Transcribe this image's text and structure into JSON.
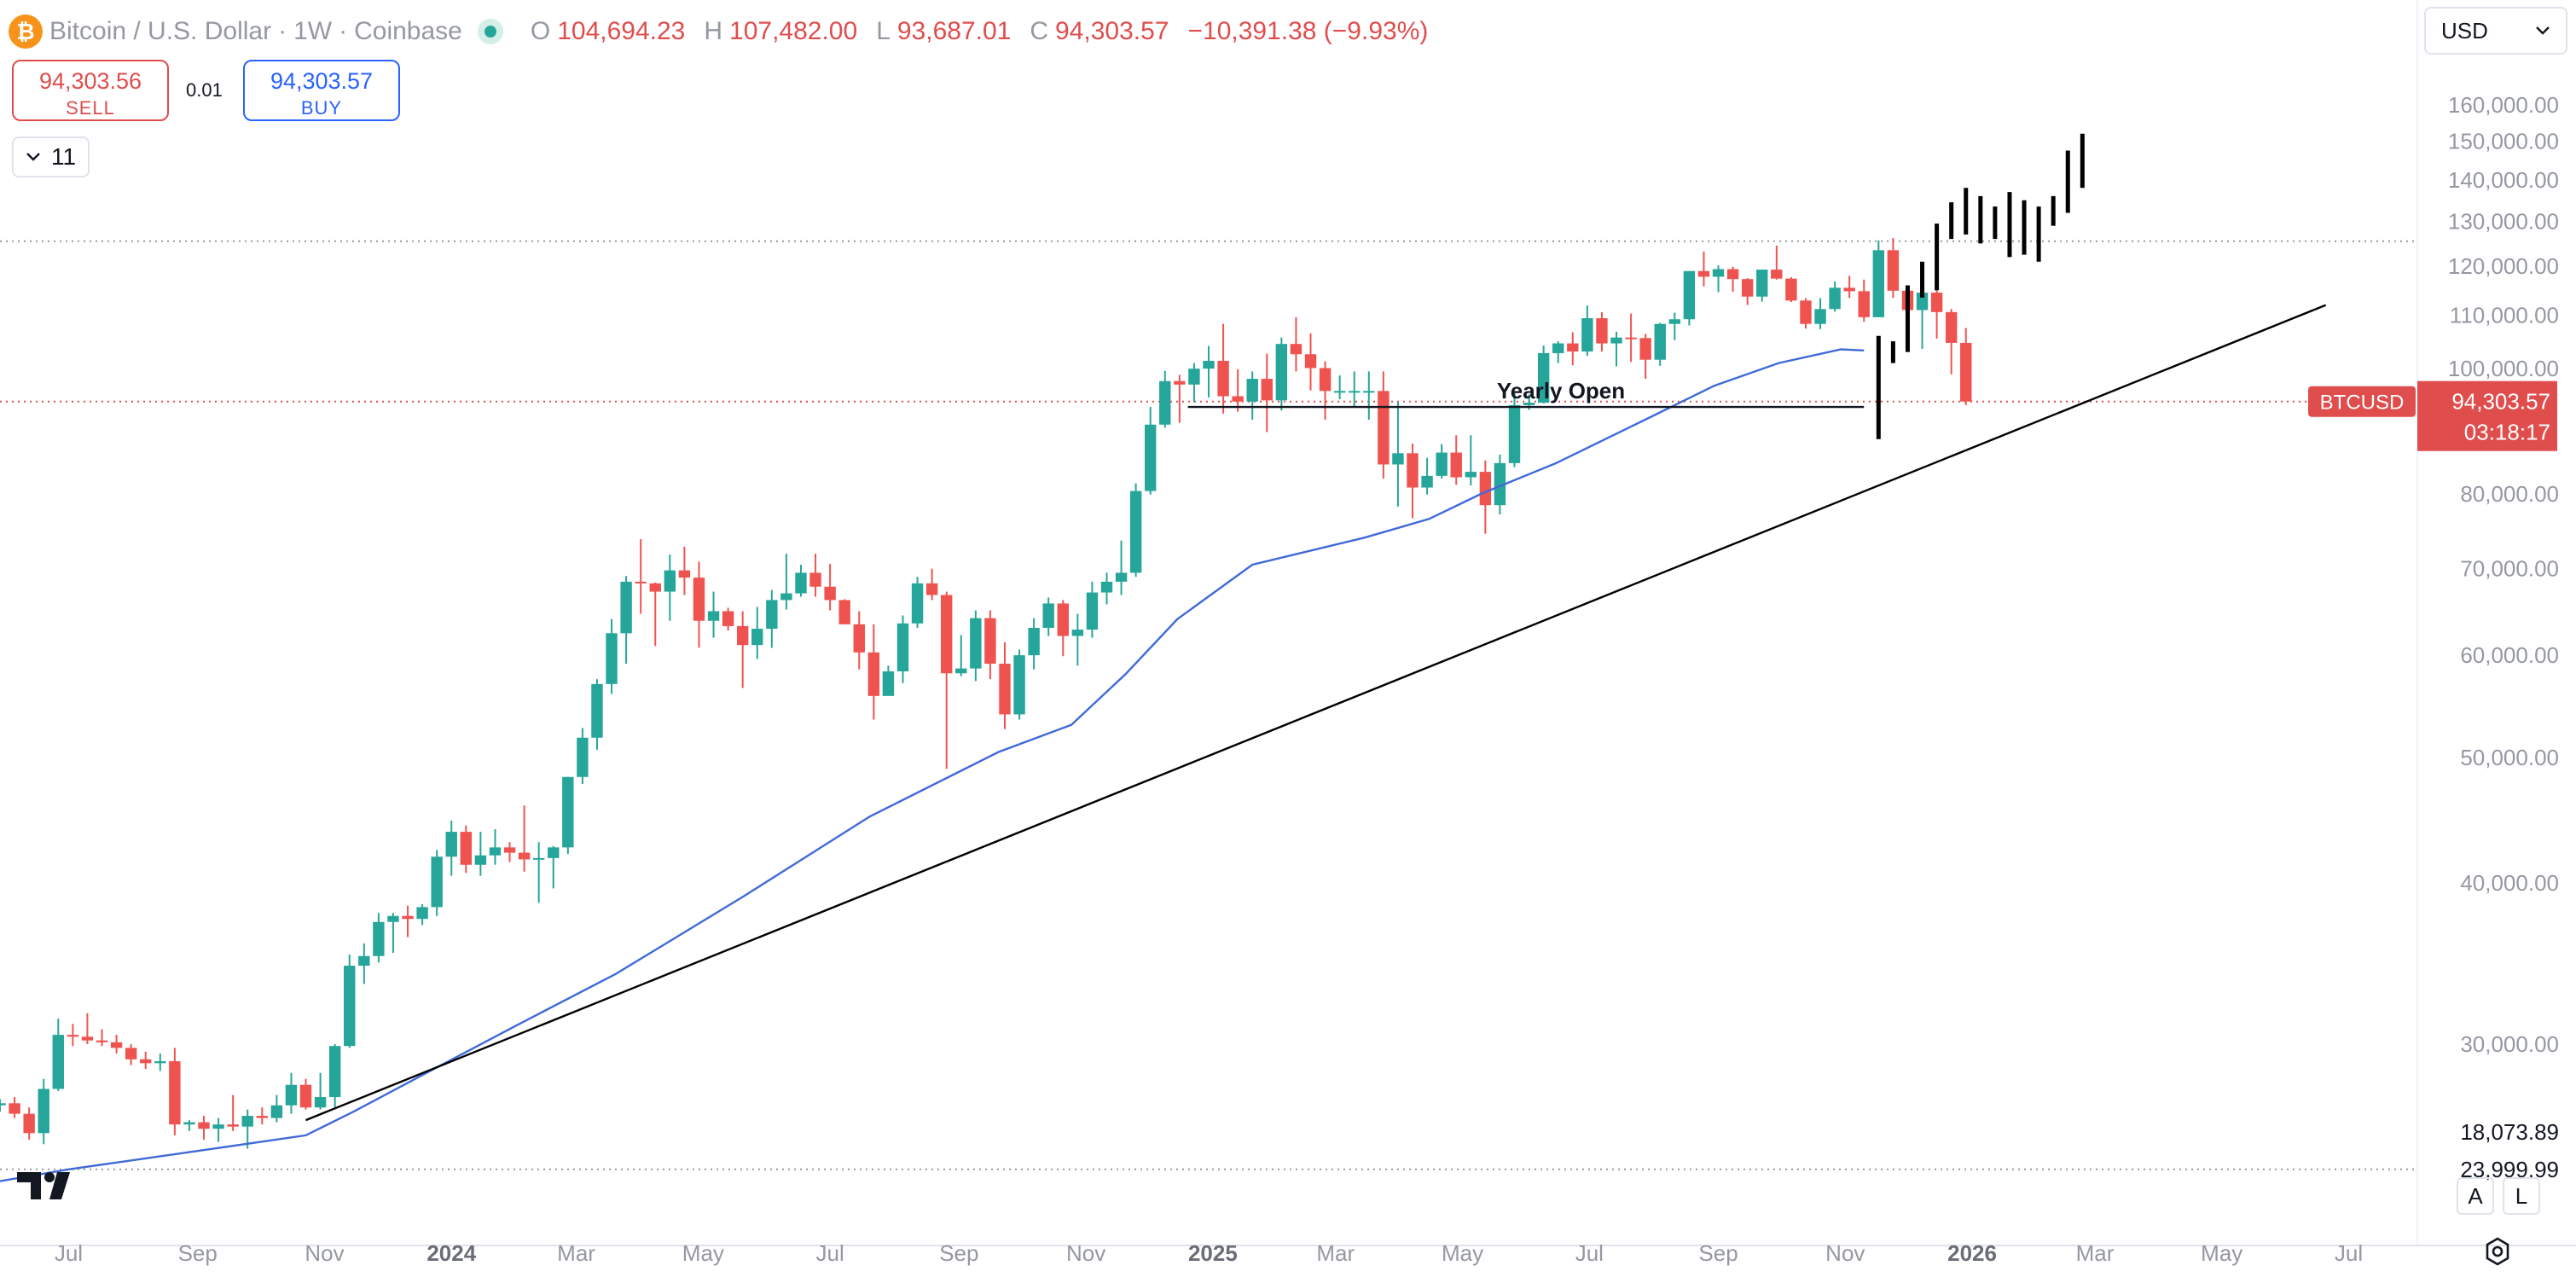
{
  "header": {
    "symbol": "Bitcoin / U.S. Dollar",
    "interval": "1W",
    "exchange": "Coinbase",
    "separator": "·",
    "coin_glyph": "₿",
    "open_label": "O",
    "open": "104,694.23",
    "high_label": "H",
    "high": "107,482.00",
    "low_label": "L",
    "low": "93,687.01",
    "close_label": "C",
    "close": "94,303.57",
    "change": "−10,391.38 (−9.93%)"
  },
  "trade": {
    "sell_price": "94,303.56",
    "sell_label": "SELL",
    "spread": "0.01",
    "buy_price": "94,303.57",
    "buy_label": "BUY"
  },
  "indicators_toggle": {
    "count": "11",
    "icon": "chevron-down-icon"
  },
  "currency_select": {
    "value": "USD",
    "icon": "chevron-down-icon"
  },
  "axis_buttons": {
    "auto": "A",
    "log": "L"
  },
  "colors": {
    "up": "#26a69a",
    "down": "#ef5350",
    "ma": "#3f6ad8",
    "projection": "#000000",
    "trendline": "#000000",
    "price_tag": "#e04d4d"
  },
  "chart_data": {
    "type": "candlestick",
    "interval": "1W",
    "y_scale": "log",
    "ylim": [
      18073.89,
      175000
    ],
    "x_range": [
      "2023-05-29",
      "2026-08-03"
    ],
    "y_ticks": [
      30000,
      40000,
      50000,
      60000,
      70000,
      80000,
      100000,
      110000,
      120000,
      130000,
      140000,
      150000,
      160000
    ],
    "y_tick_labels": [
      "30,000.00",
      "40,000.00",
      "50,000.00",
      "60,000.00",
      "70,000.00",
      "80,000.00",
      "100,000.00",
      "110,000.00",
      "120,000.00",
      "130,000.00",
      "140,000.00",
      "150,000.00",
      "160,000.00"
    ],
    "x_ticks": [
      {
        "date": "2023-07-01",
        "label": "Jul",
        "bold": false
      },
      {
        "date": "2023-09-01",
        "label": "Sep",
        "bold": false
      },
      {
        "date": "2023-11-01",
        "label": "Nov",
        "bold": false
      },
      {
        "date": "2024-01-01",
        "label": "2024",
        "bold": true
      },
      {
        "date": "2024-03-01",
        "label": "Mar",
        "bold": false
      },
      {
        "date": "2024-05-01",
        "label": "May",
        "bold": false
      },
      {
        "date": "2024-07-01",
        "label": "Jul",
        "bold": false
      },
      {
        "date": "2024-09-01",
        "label": "Sep",
        "bold": false
      },
      {
        "date": "2024-11-01",
        "label": "Nov",
        "bold": false
      },
      {
        "date": "2025-01-01",
        "label": "2025",
        "bold": true
      },
      {
        "date": "2025-03-01",
        "label": "Mar",
        "bold": false
      },
      {
        "date": "2025-05-01",
        "label": "May",
        "bold": false
      },
      {
        "date": "2025-07-01",
        "label": "Jul",
        "bold": false
      },
      {
        "date": "2025-09-01",
        "label": "Sep",
        "bold": false
      },
      {
        "date": "2025-11-01",
        "label": "Nov",
        "bold": false
      },
      {
        "date": "2026-01-01",
        "label": "2026",
        "bold": true
      },
      {
        "date": "2026-03-01",
        "label": "Mar",
        "bold": false
      },
      {
        "date": "2026-05-01",
        "label": "May",
        "bold": false
      },
      {
        "date": "2026-07-01",
        "label": "Jul",
        "bold": false
      }
    ],
    "first_candle_date": "2023-05-29",
    "candles": [
      [
        26900,
        27200,
        26600,
        27000
      ],
      [
        27000,
        27300,
        26300,
        26500
      ],
      [
        26500,
        26800,
        25300,
        25600
      ],
      [
        25600,
        28200,
        25100,
        27700
      ],
      [
        27700,
        31400,
        27600,
        30500
      ],
      [
        30500,
        31100,
        29900,
        30400
      ],
      [
        30400,
        31700,
        30000,
        30200
      ],
      [
        30200,
        30800,
        29900,
        30100
      ],
      [
        30100,
        30500,
        29500,
        29800
      ],
      [
        29800,
        30000,
        28900,
        29200
      ],
      [
        29200,
        29600,
        28700,
        29000
      ],
      [
        29000,
        29500,
        28600,
        29100
      ],
      [
        29100,
        29800,
        25500,
        26000
      ],
      [
        26000,
        26200,
        25700,
        26100
      ],
      [
        26100,
        26400,
        25300,
        25800
      ],
      [
        25800,
        26300,
        25200,
        26000
      ],
      [
        26000,
        27400,
        25700,
        25900
      ],
      [
        25900,
        26700,
        24900,
        26400
      ],
      [
        26400,
        26800,
        26000,
        26300
      ],
      [
        26300,
        27400,
        26100,
        26900
      ],
      [
        26900,
        28500,
        26500,
        27900
      ],
      [
        27900,
        28200,
        26700,
        26800
      ],
      [
        26800,
        28500,
        26700,
        27300
      ],
      [
        27300,
        30000,
        26800,
        29900
      ],
      [
        29900,
        35200,
        29800,
        34500
      ],
      [
        34500,
        35900,
        33400,
        35100
      ],
      [
        35100,
        37900,
        34700,
        37300
      ],
      [
        37300,
        37900,
        35300,
        37700
      ],
      [
        37700,
        38400,
        36300,
        37500
      ],
      [
        37500,
        38500,
        37100,
        38300
      ],
      [
        38300,
        42400,
        37700,
        41900
      ],
      [
        41900,
        44700,
        40500,
        43800
      ],
      [
        43800,
        44300,
        40700,
        41300
      ],
      [
        41300,
        43800,
        40500,
        42000
      ],
      [
        42000,
        44000,
        41300,
        42600
      ],
      [
        42600,
        43000,
        41500,
        42200
      ],
      [
        42200,
        45900,
        40800,
        41700
      ],
      [
        41700,
        43000,
        38600,
        41800
      ],
      [
        41800,
        42700,
        39600,
        42600
      ],
      [
        42600,
        48300,
        42100,
        48300
      ],
      [
        48300,
        52700,
        47700,
        51800
      ],
      [
        51800,
        57500,
        50700,
        57000
      ],
      [
        57000,
        64000,
        56000,
        62400
      ],
      [
        62400,
        69100,
        59100,
        68400
      ],
      [
        68400,
        73800,
        64600,
        68200
      ],
      [
        68200,
        68300,
        61000,
        67200
      ],
      [
        67200,
        71800,
        63800,
        69800
      ],
      [
        69800,
        72800,
        66800,
        68900
      ],
      [
        68900,
        70900,
        60800,
        63800
      ],
      [
        63800,
        67200,
        61900,
        64900
      ],
      [
        64900,
        65300,
        62700,
        63200
      ],
      [
        63200,
        64900,
        56600,
        61100
      ],
      [
        61100,
        65400,
        59600,
        62900
      ],
      [
        62900,
        67400,
        60800,
        66200
      ],
      [
        66200,
        71900,
        65100,
        67000
      ],
      [
        67000,
        70500,
        66600,
        69500
      ],
      [
        69500,
        71900,
        66600,
        67800
      ],
      [
        67800,
        70600,
        65000,
        66200
      ],
      [
        66200,
        66300,
        63600,
        63400
      ],
      [
        63400,
        64900,
        58500,
        60300
      ],
      [
        60300,
        63400,
        53500,
        55800
      ],
      [
        55800,
        58900,
        56000,
        58300
      ],
      [
        58300,
        64400,
        57100,
        63500
      ],
      [
        63500,
        69000,
        63000,
        68200
      ],
      [
        68200,
        70000,
        66200,
        66800
      ],
      [
        66800,
        67200,
        49000,
        58100
      ],
      [
        58100,
        62200,
        57800,
        58600
      ],
      [
        58600,
        65000,
        57300,
        64100
      ],
      [
        64100,
        65000,
        57500,
        59100
      ],
      [
        59100,
        61400,
        52600,
        54000
      ],
      [
        54000,
        60600,
        53500,
        60000
      ],
      [
        60000,
        64100,
        58500,
        63000
      ],
      [
        63000,
        66500,
        62100,
        65800
      ],
      [
        65800,
        66200,
        59900,
        62100
      ],
      [
        62100,
        64600,
        58900,
        62800
      ],
      [
        62800,
        68400,
        61900,
        67100
      ],
      [
        67100,
        69500,
        65700,
        68400
      ],
      [
        68400,
        73600,
        66800,
        69500
      ],
      [
        69500,
        81500,
        69000,
        80400
      ],
      [
        80400,
        93400,
        79900,
        90500
      ],
      [
        90500,
        99600,
        90000,
        97800
      ],
      [
        97800,
        98900,
        90800,
        97200
      ],
      [
        97200,
        101000,
        94200,
        100000
      ],
      [
        100000,
        104100,
        95000,
        101400
      ],
      [
        101400,
        108300,
        92300,
        95200
      ],
      [
        95200,
        99900,
        92600,
        94300
      ],
      [
        94300,
        99500,
        91300,
        98200
      ],
      [
        98200,
        102700,
        89300,
        94500
      ],
      [
        94500,
        105700,
        92800,
        104500
      ],
      [
        104500,
        109600,
        99500,
        102600
      ],
      [
        102600,
        106500,
        96200,
        100100
      ],
      [
        100100,
        101300,
        91300,
        96100
      ],
      [
        96100,
        98800,
        94700,
        96100
      ],
      [
        96100,
        99500,
        93400,
        96100
      ],
      [
        96100,
        99500,
        91300,
        96100
      ],
      [
        96100,
        99500,
        82200,
        84300
      ],
      [
        84300,
        94200,
        78200,
        86000
      ],
      [
        86000,
        87500,
        76600,
        80900
      ],
      [
        80900,
        85300,
        79900,
        82600
      ],
      [
        82600,
        87400,
        82200,
        86100
      ],
      [
        86100,
        88800,
        81300,
        82400
      ],
      [
        82400,
        88800,
        81200,
        83200
      ],
      [
        83200,
        84900,
        74500,
        78400
      ],
      [
        78400,
        85800,
        77100,
        84500
      ],
      [
        84500,
        95700,
        83900,
        93700
      ],
      [
        93700,
        95500,
        92900,
        94100
      ],
      [
        94100,
        104200,
        94000,
        102800
      ],
      [
        102800,
        105000,
        101000,
        104600
      ],
      [
        104600,
        106700,
        100600,
        103100
      ],
      [
        103100,
        111900,
        102300,
        109400
      ],
      [
        109400,
        110600,
        103100,
        104600
      ],
      [
        104600,
        106800,
        100400,
        105700
      ],
      [
        105700,
        110300,
        101200,
        105600
      ],
      [
        105600,
        106400,
        98200,
        101600
      ],
      [
        101600,
        108500,
        100500,
        108300
      ],
      [
        108300,
        110500,
        105200,
        109200
      ],
      [
        109200,
        119000,
        108000,
        119000
      ],
      [
        119000,
        123200,
        115800,
        117800
      ],
      [
        117800,
        120200,
        114600,
        119400
      ],
      [
        119400,
        119900,
        114700,
        117300
      ],
      [
        117300,
        117500,
        112000,
        113700
      ],
      [
        113700,
        119300,
        112700,
        119300
      ],
      [
        119300,
        124500,
        117200,
        117400
      ],
      [
        117400,
        117700,
        112600,
        112900
      ],
      [
        112900,
        113400,
        107400,
        108300
      ],
      [
        108300,
        113400,
        107300,
        111200
      ],
      [
        111200,
        116800,
        110700,
        115500
      ],
      [
        115500,
        118000,
        113400,
        114800
      ],
      [
        114800,
        117200,
        108700,
        109600
      ],
      [
        109600,
        125700,
        109600,
        123500
      ],
      [
        123500,
        126200,
        113400,
        114900
      ],
      [
        114900,
        116000,
        104800,
        111000
      ],
      [
        111000,
        114900,
        103600,
        114500
      ],
      [
        114500,
        116400,
        105500,
        110600
      ],
      [
        110600,
        111200,
        99000,
        104700
      ],
      [
        104700,
        107500,
        93700,
        94300
      ]
    ],
    "ma_series": [
      [
        "2023-05-29",
        23500
      ],
      [
        "2023-07-01",
        24000
      ],
      [
        "2023-09-01",
        24800
      ],
      [
        "2023-10-23",
        25500
      ],
      [
        "2023-11-15",
        26600
      ],
      [
        "2023-12-20",
        28500
      ],
      [
        "2024-02-01",
        31000
      ],
      [
        "2024-03-20",
        34000
      ],
      [
        "2024-05-20",
        39000
      ],
      [
        "2024-07-20",
        45000
      ],
      [
        "2024-09-20",
        50500
      ],
      [
        "2024-10-25",
        53000
      ],
      [
        "2024-11-20",
        58000
      ],
      [
        "2024-12-15",
        64000
      ],
      [
        "2025-01-20",
        70500
      ],
      [
        "2025-03-15",
        74000
      ],
      [
        "2025-04-15",
        76500
      ],
      [
        "2025-05-10",
        80000
      ],
      [
        "2025-06-15",
        84500
      ],
      [
        "2025-08-01",
        92000
      ],
      [
        "2025-08-30",
        97000
      ],
      [
        "2025-09-30",
        101000
      ],
      [
        "2025-10-30",
        103500
      ],
      [
        "2025-11-10",
        103300
      ]
    ],
    "trendline": [
      [
        "2023-10-23",
        26200
      ],
      [
        "2026-06-20",
        112000
      ]
    ],
    "yearly_open": {
      "label": "Yearly Open",
      "value": 93400,
      "from": "2024-12-20",
      "to": "2025-11-10"
    },
    "projection_bars": [
      [
        "2025-11-17",
        88200,
        106000
      ],
      [
        "2025-11-24",
        101000,
        105000
      ],
      [
        "2025-12-01",
        103000,
        116000
      ],
      [
        "2025-12-08",
        113500,
        121000
      ],
      [
        "2025-12-15",
        115000,
        129500
      ],
      [
        "2025-12-22",
        126000,
        134500
      ],
      [
        "2025-12-29",
        127000,
        138000
      ],
      [
        "2026-01-05",
        125000,
        136000
      ],
      [
        "2026-01-12",
        126000,
        133500
      ],
      [
        "2026-01-19",
        122000,
        137000
      ],
      [
        "2026-01-26",
        122500,
        135000
      ],
      [
        "2026-02-02",
        121000,
        133500
      ],
      [
        "2026-02-09",
        129000,
        136000
      ],
      [
        "2026-02-16",
        132000,
        147500
      ],
      [
        "2026-02-23",
        138000,
        152000
      ]
    ],
    "h_lines": [
      {
        "value": 125500,
        "style": "dotted",
        "color": "#9598a1"
      },
      {
        "value": 23999.99,
        "style": "dotted",
        "color": "#9598a1",
        "label": "23,999.99"
      },
      {
        "value": 94303.57,
        "style": "dotted",
        "color": "#e04d4d"
      }
    ],
    "bottom_label": "18,073.89",
    "price_tag": {
      "symbol": "BTCUSD",
      "price": "94,303.57",
      "countdown": "03:18:17"
    }
  }
}
